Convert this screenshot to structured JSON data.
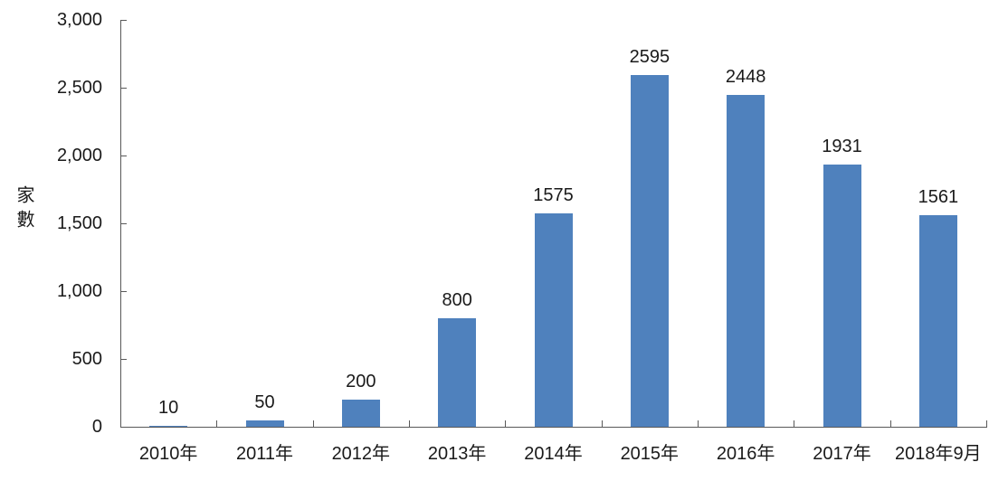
{
  "chart_data": {
    "type": "bar",
    "ylabel": "家數",
    "xlabel": "",
    "categories": [
      "2010年",
      "2011年",
      "2012年",
      "2013年",
      "2014年",
      "2015年",
      "2016年",
      "2017年",
      "2018年9月"
    ],
    "values": [
      10,
      50,
      200,
      800,
      1575,
      2595,
      2448,
      1931,
      1561
    ],
    "data_labels": [
      "10",
      "50",
      "200",
      "800",
      "1575",
      "2595",
      "2448",
      "1931",
      "1561"
    ],
    "ylim": [
      0,
      3000
    ],
    "yticks": [
      {
        "value": 0,
        "label": "0"
      },
      {
        "value": 500,
        "label": "500"
      },
      {
        "value": 1000,
        "label": "1,000"
      },
      {
        "value": 1500,
        "label": "1,500"
      },
      {
        "value": 2000,
        "label": "2,000"
      },
      {
        "value": 2500,
        "label": "2,500"
      },
      {
        "value": 3000,
        "label": "3,000"
      }
    ],
    "grid": false,
    "legend": "none",
    "bar_color": "#4F81BD",
    "axis_color": "#595959",
    "text_color": "#1a1a1a"
  }
}
